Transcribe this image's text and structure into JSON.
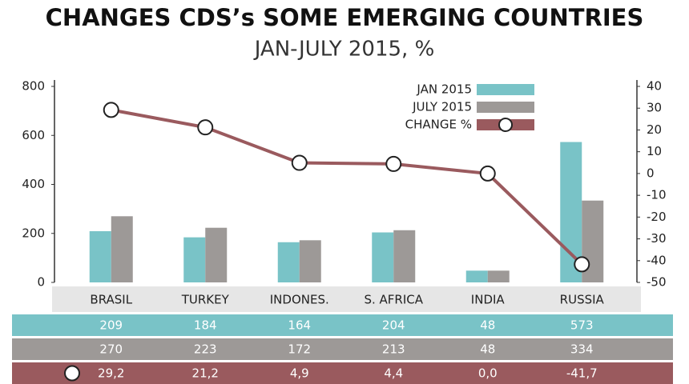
{
  "chart_data": {
    "type": "bar",
    "title": "CHANGES CDS’s SOME EMERGING COUNTRIES",
    "subtitle": "JAN-JULY 2015, %",
    "categories": [
      "BRASIL",
      "TURKEY",
      "INDONES.",
      "S. AFRICA",
      "INDIA",
      "RUSSIA"
    ],
    "series": [
      {
        "name": "JAN 2015",
        "color": "#79c3c7",
        "values": [
          209,
          184,
          164,
          204,
          48,
          573
        ]
      },
      {
        "name": "JULY 2015",
        "color": "#9d9997",
        "values": [
          270,
          223,
          172,
          213,
          48,
          334
        ]
      },
      {
        "name": "CHANGE %",
        "color": "#9a5a5e",
        "type": "line",
        "axis": "y2",
        "values": [
          29.2,
          21.2,
          4.9,
          4.4,
          0.0,
          -41.7
        ],
        "value_labels": [
          "29,2",
          "21,2",
          "4,9",
          "4,4",
          "0,0",
          "-41,7"
        ]
      }
    ],
    "ylim": [
      0,
      800
    ],
    "yticks": [
      0,
      200,
      400,
      600,
      800
    ],
    "y2lim": [
      -50,
      40
    ],
    "y2ticks": [
      40,
      30,
      20,
      10,
      0,
      -10,
      -20,
      -30,
      -40,
      -50
    ],
    "legend": "top-right"
  }
}
